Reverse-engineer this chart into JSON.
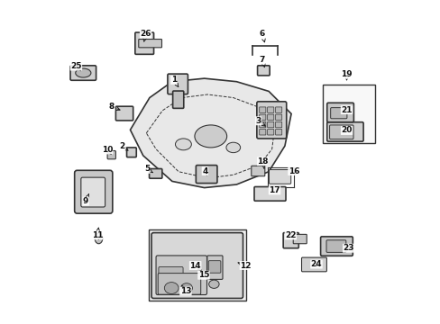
{
  "bg_color": "#ffffff",
  "line_color": "#333333",
  "arrow_data": [
    [
      1,
      0.355,
      0.755,
      0.375,
      0.725
    ],
    [
      2,
      0.195,
      0.548,
      0.222,
      0.53
    ],
    [
      3,
      0.618,
      0.628,
      0.648,
      0.605
    ],
    [
      4,
      0.452,
      0.472,
      0.458,
      0.458
    ],
    [
      5,
      0.272,
      0.478,
      0.298,
      0.462
    ],
    [
      6,
      0.63,
      0.898,
      0.638,
      0.87
    ],
    [
      7,
      0.63,
      0.818,
      0.638,
      0.792
    ],
    [
      8,
      0.162,
      0.672,
      0.198,
      0.658
    ],
    [
      9,
      0.082,
      0.378,
      0.092,
      0.402
    ],
    [
      10,
      0.148,
      0.538,
      0.162,
      0.522
    ],
    [
      11,
      0.118,
      0.272,
      0.122,
      0.298
    ],
    [
      12,
      0.578,
      0.178,
      0.552,
      0.188
    ],
    [
      13,
      0.392,
      0.098,
      0.378,
      0.118
    ],
    [
      14,
      0.422,
      0.178,
      0.442,
      0.162
    ],
    [
      15,
      0.448,
      0.148,
      0.458,
      0.142
    ],
    [
      16,
      0.728,
      0.472,
      0.718,
      0.462
    ],
    [
      17,
      0.668,
      0.412,
      0.678,
      0.402
    ],
    [
      18,
      0.632,
      0.502,
      0.636,
      0.478
    ],
    [
      19,
      0.892,
      0.772,
      0.892,
      0.752
    ],
    [
      20,
      0.892,
      0.598,
      0.898,
      0.612
    ],
    [
      21,
      0.892,
      0.662,
      0.892,
      0.662
    ],
    [
      22,
      0.718,
      0.272,
      0.718,
      0.268
    ],
    [
      23,
      0.898,
      0.232,
      0.892,
      0.242
    ],
    [
      24,
      0.798,
      0.182,
      0.792,
      0.188
    ],
    [
      25,
      0.052,
      0.798,
      0.068,
      0.782
    ],
    [
      26,
      0.268,
      0.898,
      0.262,
      0.872
    ]
  ]
}
